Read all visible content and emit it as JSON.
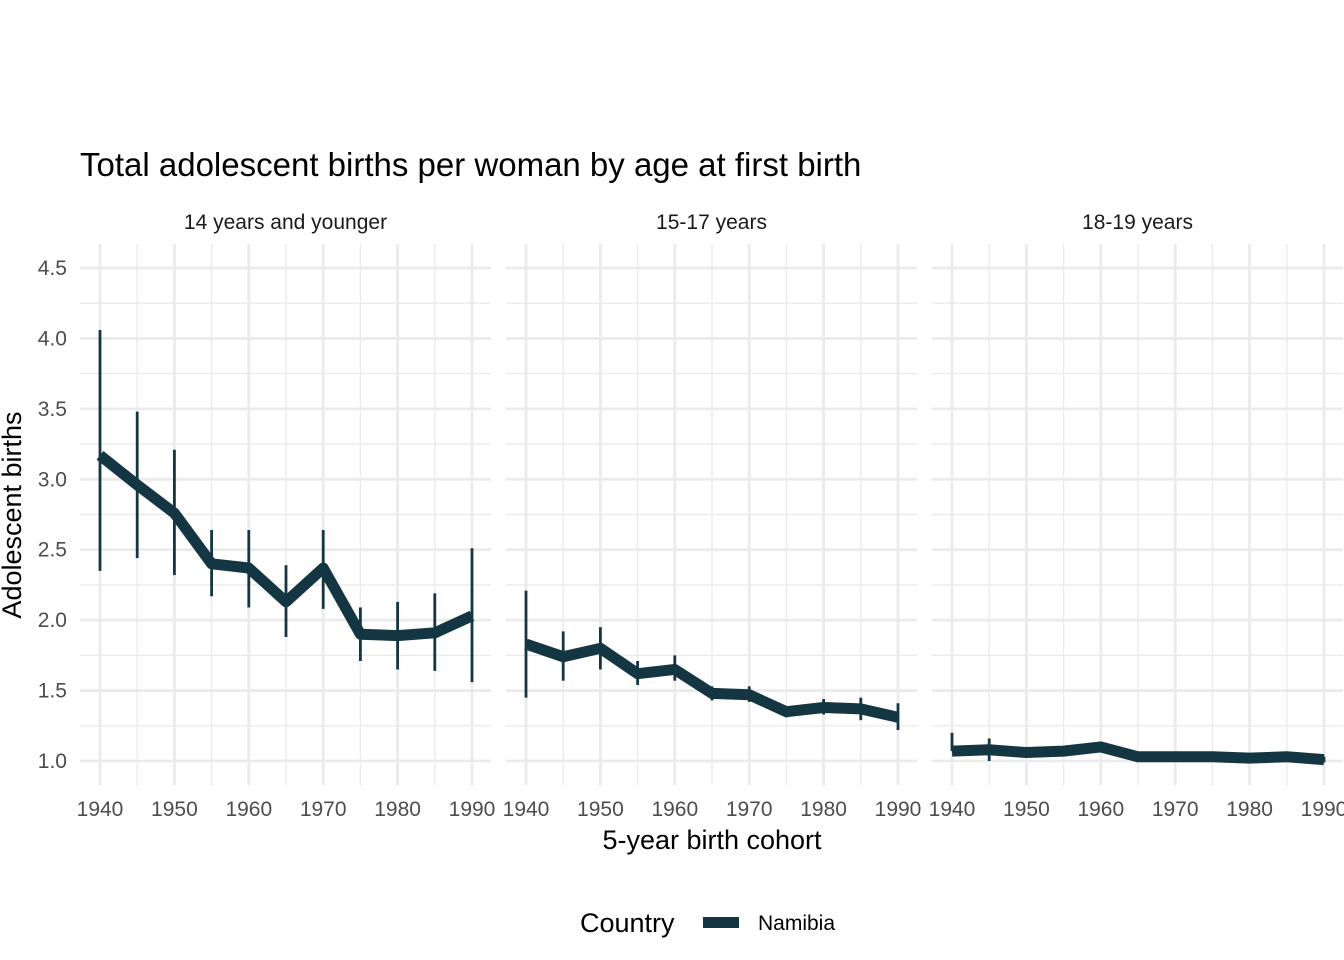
{
  "chart_data": {
    "type": "line",
    "title": "Total adolescent births per woman by age at first birth",
    "xlabel": "5-year birth cohort",
    "ylabel": "Adolescent births",
    "xlim": [
      1940,
      1990
    ],
    "ylim": [
      1.0,
      4.5
    ],
    "x_ticks": [
      1940,
      1950,
      1960,
      1970,
      1980,
      1990
    ],
    "y_ticks": [
      "1.0",
      "1.5",
      "2.0",
      "2.5",
      "3.0",
      "3.5",
      "4.0",
      "4.5"
    ],
    "grid": true,
    "legend": {
      "title": "Country",
      "position": "bottom",
      "entries": [
        "Namibia"
      ]
    },
    "series_color": "#143642",
    "x": [
      1940,
      1945,
      1950,
      1955,
      1960,
      1965,
      1970,
      1975,
      1980,
      1985,
      1990
    ],
    "panels": [
      {
        "label": "14 years and younger",
        "series": [
          {
            "name": "Namibia",
            "values": [
              3.17,
              2.96,
              2.76,
              2.4,
              2.37,
              2.13,
              2.37,
              1.9,
              1.89,
              1.91,
              2.03
            ],
            "lower": [
              2.35,
              2.44,
              2.32,
              2.17,
              2.09,
              1.88,
              2.08,
              1.71,
              1.65,
              1.64,
              1.56
            ],
            "upper": [
              4.06,
              3.48,
              3.21,
              2.64,
              2.64,
              2.39,
              2.64,
              2.09,
              2.13,
              2.19,
              2.51
            ]
          }
        ]
      },
      {
        "label": "15-17 years",
        "series": [
          {
            "name": "Namibia",
            "values": [
              1.83,
              1.74,
              1.8,
              1.62,
              1.65,
              1.48,
              1.47,
              1.35,
              1.38,
              1.37,
              1.31
            ],
            "lower": [
              1.45,
              1.57,
              1.65,
              1.54,
              1.57,
              1.43,
              1.42,
              1.31,
              1.33,
              1.29,
              1.22
            ],
            "upper": [
              2.21,
              1.92,
              1.95,
              1.71,
              1.75,
              1.53,
              1.53,
              1.39,
              1.44,
              1.45,
              1.41
            ]
          }
        ]
      },
      {
        "label": "18-19 years",
        "series": [
          {
            "name": "Namibia",
            "values": [
              1.07,
              1.08,
              1.06,
              1.07,
              1.1,
              1.03,
              1.03,
              1.03,
              1.02,
              1.03,
              1.01
            ],
            "lower": [
              1.07,
              1.0,
              1.03,
              1.04,
              1.07,
              1.01,
              1.01,
              1.0,
              1.0,
              1.0,
              0.99
            ],
            "upper": [
              1.2,
              1.16,
              1.1,
              1.1,
              1.13,
              1.05,
              1.05,
              1.05,
              1.04,
              1.05,
              1.03
            ]
          }
        ]
      }
    ]
  }
}
